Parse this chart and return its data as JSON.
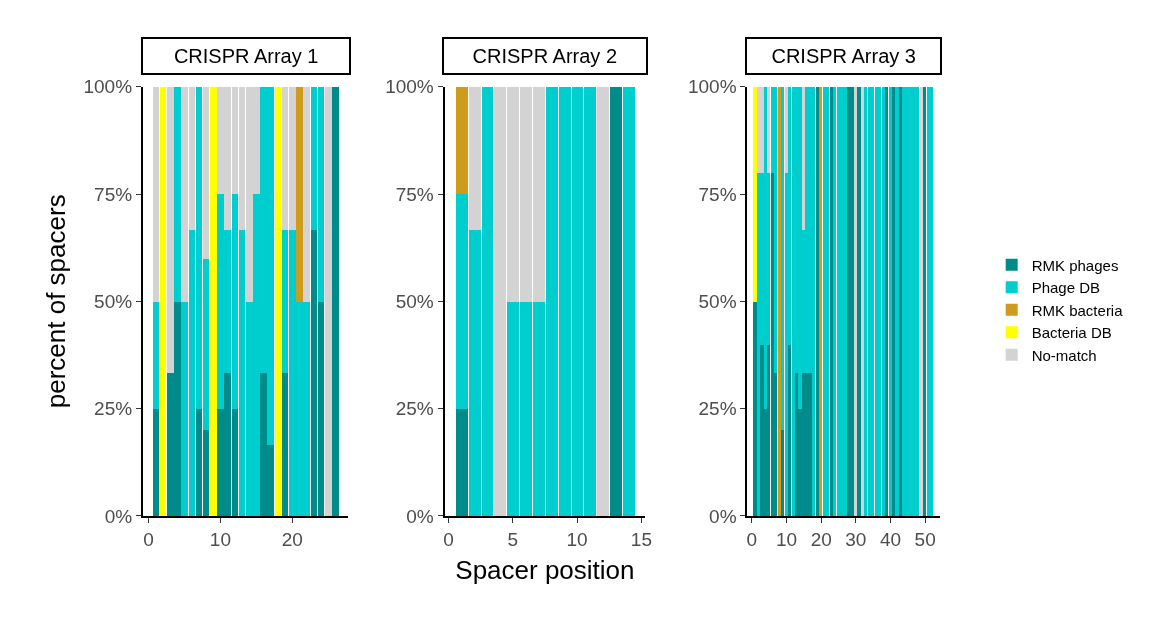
{
  "chart_data": [
    {
      "type": "bar",
      "stacked": true,
      "title": "CRISPR Array 1",
      "ylabel": "percent of spacers",
      "legend": "right",
      "x": [
        1,
        2,
        3,
        4,
        5,
        6,
        7,
        8,
        9,
        10,
        11,
        12,
        13,
        14,
        15,
        16,
        17,
        18,
        19,
        20,
        21,
        22,
        23,
        24,
        25,
        26
      ],
      "xlim": [
        -0.8,
        27.8
      ],
      "xticks": [
        0,
        10,
        20
      ],
      "ylim": [
        0,
        100
      ],
      "yticks": [
        {
          "value": 0,
          "label": "0%"
        },
        {
          "value": 25,
          "label": "25%"
        },
        {
          "value": 50,
          "label": "50%"
        },
        {
          "value": 75,
          "label": "75%"
        },
        {
          "value": 100,
          "label": "100%"
        }
      ],
      "series": [
        {
          "name": "RMK phages",
          "color": "#008b8b",
          "values": [
            25,
            null,
            33.3,
            50,
            null,
            null,
            25,
            20,
            null,
            25,
            33.3,
            25,
            null,
            null,
            null,
            33.3,
            16.7,
            null,
            33.3,
            null,
            null,
            null,
            66.7,
            50,
            null,
            100
          ]
        },
        {
          "name": "Phage DB",
          "color": "#00cdcd",
          "values": [
            25,
            null,
            null,
            50,
            50,
            66.7,
            75,
            40,
            null,
            50,
            33.4,
            50,
            66.7,
            50,
            75,
            66.7,
            83.3,
            null,
            33.4,
            66.7,
            50,
            50,
            33.3,
            50,
            null,
            null
          ]
        },
        {
          "name": "RMK bacteria",
          "color": "#cd9b1d",
          "values": [
            null,
            null,
            null,
            null,
            null,
            null,
            null,
            null,
            null,
            null,
            null,
            null,
            null,
            null,
            null,
            null,
            null,
            null,
            null,
            null,
            50,
            null,
            null,
            null,
            null,
            null
          ]
        },
        {
          "name": "Bacteria DB",
          "color": "#ffff00",
          "values": [
            null,
            100,
            null,
            null,
            null,
            null,
            null,
            null,
            100,
            null,
            null,
            null,
            null,
            null,
            null,
            null,
            null,
            100,
            null,
            null,
            null,
            null,
            null,
            null,
            null,
            null
          ]
        },
        {
          "name": "No-match",
          "color": "#d3d3d3",
          "values": [
            50,
            null,
            66.7,
            null,
            50,
            33.3,
            null,
            40,
            null,
            25,
            33.3,
            25,
            33.3,
            50,
            25,
            null,
            null,
            null,
            33.3,
            33.3,
            null,
            50,
            null,
            null,
            100,
            null
          ]
        }
      ]
    },
    {
      "type": "bar",
      "stacked": true,
      "title": "CRISPR Array 2",
      "xlabel": "Spacer position",
      "x": [
        1,
        2,
        3,
        4,
        5,
        6,
        7,
        8,
        9,
        10,
        11,
        12,
        13,
        14
      ],
      "xlim": [
        -0.3,
        15.3
      ],
      "xticks": [
        0,
        5,
        10,
        15
      ],
      "ylim": [
        0,
        100
      ],
      "yticks": [
        {
          "value": 0,
          "label": "0%"
        },
        {
          "value": 25,
          "label": "25%"
        },
        {
          "value": 50,
          "label": "50%"
        },
        {
          "value": 75,
          "label": "75%"
        },
        {
          "value": 100,
          "label": "100%"
        }
      ],
      "series": [
        {
          "color": "#008b8b",
          "values": [
            25,
            null,
            null,
            null,
            null,
            null,
            null,
            null,
            null,
            null,
            null,
            null,
            100,
            null
          ]
        },
        {
          "color": "#00cdcd",
          "values": [
            50,
            66.7,
            100,
            null,
            50,
            50,
            50,
            100,
            100,
            100,
            100,
            null,
            null,
            100
          ]
        },
        {
          "color": "#cd9b1d",
          "values": [
            25,
            null,
            null,
            null,
            null,
            null,
            null,
            null,
            null,
            null,
            null,
            null,
            null,
            null
          ]
        },
        {
          "color": "#d3d3d3",
          "values": [
            null,
            33.3,
            null,
            100,
            50,
            50,
            50,
            null,
            null,
            null,
            null,
            100,
            null,
            null
          ]
        }
      ]
    },
    {
      "type": "bar",
      "stacked": true,
      "title": "CRISPR Array 3",
      "x": [
        1,
        2,
        3,
        4,
        5,
        6,
        7,
        8,
        9,
        10,
        11,
        12,
        13,
        14,
        15,
        16,
        17,
        18,
        19,
        20,
        21,
        22,
        23,
        24,
        25,
        26,
        27,
        28,
        29,
        30,
        31,
        32,
        33,
        34,
        35,
        36,
        37,
        38,
        39,
        40,
        41,
        42,
        43,
        44,
        45,
        46,
        47,
        48,
        49,
        50,
        51,
        52
      ],
      "xlim": [
        -1.3,
        54.3
      ],
      "xticks": [
        0,
        10,
        20,
        30,
        40,
        50
      ],
      "ylim": [
        0,
        100
      ],
      "yticks": [
        {
          "value": 0,
          "label": "0%"
        },
        {
          "value": 25,
          "label": "25%"
        },
        {
          "value": 50,
          "label": "50%"
        },
        {
          "value": 75,
          "label": "75%"
        },
        {
          "value": 100,
          "label": "100%"
        }
      ],
      "series": [
        {
          "color": "#008b8b",
          "values": [
            50,
            null,
            40,
            25,
            40,
            80,
            33.3,
            null,
            20,
            null,
            40,
            null,
            33.3,
            25,
            33.3,
            33.3,
            33.3,
            null,
            100,
            null,
            null,
            null,
            100,
            null,
            null,
            null,
            null,
            100,
            100,
            null,
            100,
            null,
            null,
            null,
            null,
            null,
            null,
            null,
            100,
            null,
            100,
            null,
            100,
            null,
            null,
            null,
            null,
            null,
            null,
            100,
            null,
            null
          ]
        },
        {
          "color": "#00cdcd",
          "values": [
            null,
            80,
            40,
            75,
            40,
            20,
            66.7,
            null,
            80,
            80,
            60,
            100,
            66.7,
            75,
            33.4,
            66.7,
            66.7,
            100,
            null,
            null,
            100,
            100,
            null,
            100,
            100,
            100,
            100,
            null,
            null,
            null,
            null,
            null,
            100,
            100,
            100,
            100,
            100,
            100,
            null,
            100,
            null,
            100,
            null,
            100,
            100,
            100,
            100,
            100,
            null,
            null,
            100,
            100
          ]
        },
        {
          "color": "#cd9b1d",
          "values": [
            null,
            null,
            null,
            null,
            null,
            null,
            null,
            100,
            null,
            null,
            null,
            null,
            null,
            null,
            null,
            null,
            null,
            null,
            null,
            100,
            null,
            null,
            null,
            null,
            null,
            null,
            null,
            null,
            null,
            null,
            null,
            null,
            null,
            null,
            null,
            null,
            null,
            null,
            null,
            null,
            null,
            null,
            null,
            null,
            null,
            null,
            null,
            null,
            null,
            null,
            null,
            null
          ]
        },
        {
          "color": "#ffff00",
          "values": [
            50,
            null,
            null,
            null,
            null,
            null,
            null,
            null,
            null,
            null,
            null,
            null,
            null,
            null,
            null,
            null,
            null,
            null,
            null,
            null,
            null,
            null,
            null,
            null,
            null,
            null,
            null,
            null,
            null,
            null,
            null,
            null,
            null,
            null,
            null,
            null,
            null,
            null,
            null,
            null,
            null,
            null,
            null,
            null,
            null,
            null,
            null,
            null,
            null,
            null,
            null,
            null
          ]
        },
        {
          "color": "#d3d3d3",
          "values": [
            null,
            20,
            20,
            null,
            20,
            null,
            null,
            null,
            null,
            20,
            null,
            null,
            null,
            null,
            33.3,
            null,
            null,
            null,
            null,
            null,
            null,
            null,
            null,
            null,
            null,
            null,
            null,
            null,
            null,
            100,
            null,
            100,
            null,
            null,
            null,
            null,
            null,
            null,
            null,
            null,
            null,
            null,
            null,
            null,
            null,
            null,
            null,
            null,
            100,
            null,
            null,
            null
          ]
        }
      ]
    }
  ]
}
